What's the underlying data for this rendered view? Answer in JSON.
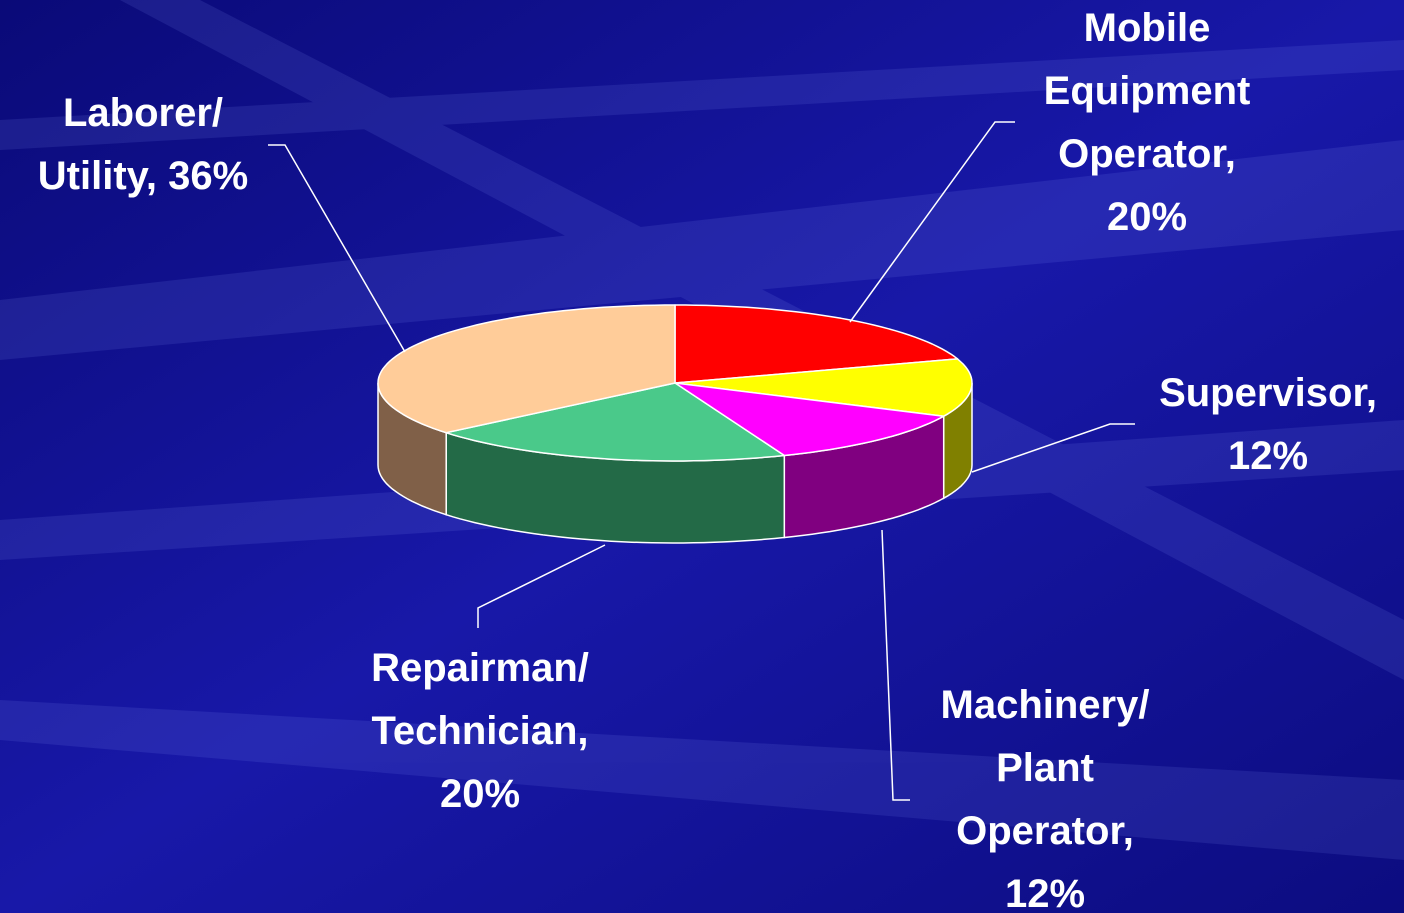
{
  "chart_data": {
    "type": "pie3d",
    "values": [
      20,
      12,
      12,
      20,
      36
    ],
    "value_labels": [
      "Mobile Equipment Operator, 20%",
      "Supervisor, 12%",
      "Machinery/ Plant Operator, 12%",
      "Repairman/ Technician, 20%",
      "Laborer/ Utility, 36%"
    ],
    "colors": [
      "#ff0000",
      "#ffff00",
      "#ff00ff",
      "#4ac98a",
      "#ffcc99"
    ],
    "side_colors": [
      "#990000",
      "#808000",
      "#800080",
      "#236a47",
      "#806048"
    ]
  }
}
